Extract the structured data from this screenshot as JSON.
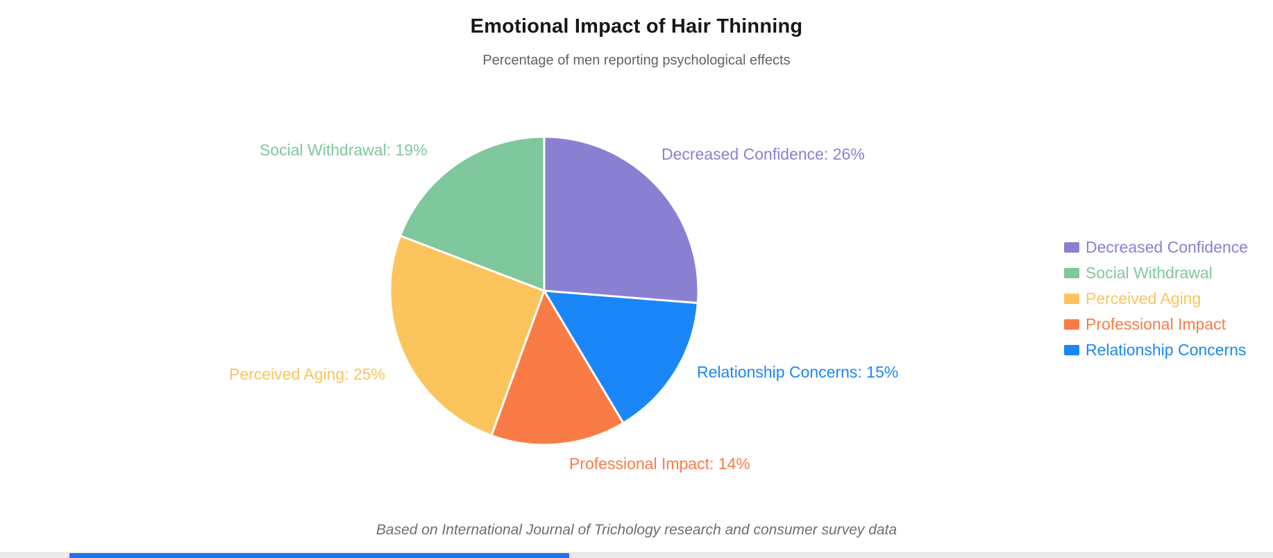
{
  "header": {
    "title": "Emotional Impact of Hair Thinning",
    "subtitle": "Percentage of men reporting psychological effects"
  },
  "footer": {
    "note": "Based on International Journal of Trichology research and consumer survey data"
  },
  "chart_data": {
    "type": "pie",
    "title": "Emotional Impact of Hair Thinning",
    "subtitle": "Percentage of men reporting psychological effects",
    "source_note": "Based on International Journal of Trichology research and consumer survey data",
    "unit": "%",
    "start_angle_deg": 90,
    "direction": "counterclockwise",
    "legend_position": "right",
    "slices": [
      {
        "label": "Decreased Confidence",
        "value": 26,
        "color": "#8a80d2",
        "callout": "Decreased Confidence: 26%"
      },
      {
        "label": "Social Withdrawal",
        "value": 19,
        "color": "#7fc79c",
        "callout": "Social Withdrawal: 19%"
      },
      {
        "label": "Perceived Aging",
        "value": 25,
        "color": "#fbc45c",
        "callout": "Perceived Aging: 25%"
      },
      {
        "label": "Professional Impact",
        "value": 14,
        "color": "#f97c46",
        "callout": "Professional Impact: 14%"
      },
      {
        "label": "Relationship Concerns",
        "value": 15,
        "color": "#1a86f8",
        "callout": "Relationship Concerns: 15%"
      }
    ]
  },
  "colors": {
    "title_text": "#171717",
    "subtitle_text": "#5f6368",
    "footnote_text": "#6a6e73",
    "slice_border": "#ffffff",
    "scrollbar_track": "#ececec",
    "scrollbar_thumb": "#2273e8"
  }
}
